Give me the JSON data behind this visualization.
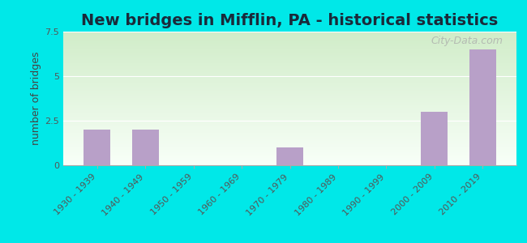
{
  "title": "New bridges in Mifflin, PA - historical statistics",
  "ylabel": "number of bridges",
  "categories": [
    "1930 - 1939",
    "1940 - 1949",
    "1950 - 1959",
    "1960 - 1969",
    "1970 - 1979",
    "1980 - 1989",
    "1990 - 1999",
    "2000 - 2009",
    "2010 - 2019"
  ],
  "values": [
    2,
    2,
    0,
    0,
    1,
    0,
    0,
    3,
    6.5
  ],
  "bar_color": "#b8a0c8",
  "ylim": [
    0,
    7.5
  ],
  "yticks": [
    0,
    2.5,
    5,
    7.5
  ],
  "bg_outer": "#00e8e8",
  "bg_inner_top": "#d8efd0",
  "bg_inner_bottom": "#f5fdf5",
  "title_fontsize": 14,
  "ylabel_fontsize": 9,
  "tick_fontsize": 8,
  "watermark": "City-Data.com",
  "title_color": "#1a2a3a"
}
